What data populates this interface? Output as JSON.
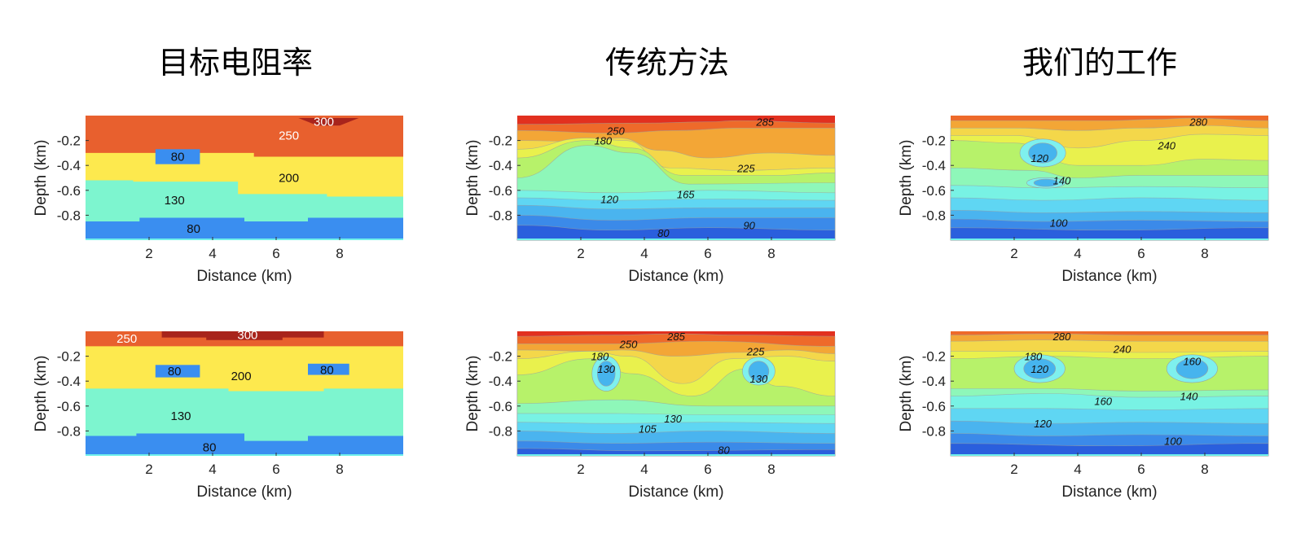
{
  "titles": [
    "目标电阻率",
    "传统方法",
    "我们的工作"
  ],
  "axes": {
    "xlabel": "Distance (km)",
    "ylabel": "Depth (km)",
    "xticks": [
      "2",
      "4",
      "6",
      "8"
    ],
    "yticks": [
      "-0.2",
      "-0.4",
      "-0.6",
      "-0.8"
    ]
  },
  "chart_data": [
    {
      "type": "heatmap",
      "column": 0,
      "row": 0,
      "xlim": [
        0,
        10
      ],
      "ylim": [
        -1.0,
        0.0
      ],
      "layers": [
        {
          "value": 300,
          "color": "#a8241c"
        },
        {
          "value": 250,
          "color": "#e8602e"
        },
        {
          "value": 200,
          "color": "#fde94e"
        },
        {
          "value": 130,
          "color": "#7df5cf"
        },
        {
          "value": 80,
          "color": "#3a8ef0"
        }
      ],
      "labels": [
        {
          "text": "300",
          "x": 7.5,
          "y": -0.05,
          "white": true
        },
        {
          "text": "250",
          "x": 6.4,
          "y": -0.16,
          "white": true
        },
        {
          "text": "80",
          "x": 2.9,
          "y": -0.33,
          "white": false
        },
        {
          "text": "200",
          "x": 6.4,
          "y": -0.5,
          "white": false
        },
        {
          "text": "130",
          "x": 2.8,
          "y": -0.68,
          "white": false
        },
        {
          "text": "80",
          "x": 3.4,
          "y": -0.91,
          "white": false
        }
      ]
    },
    {
      "type": "heatmap",
      "column": 0,
      "row": 1,
      "xlim": [
        0,
        10
      ],
      "ylim": [
        -1.0,
        0.0
      ],
      "layers": [
        {
          "value": 300,
          "color": "#a8241c"
        },
        {
          "value": 250,
          "color": "#e8602e"
        },
        {
          "value": 200,
          "color": "#fde94e"
        },
        {
          "value": 130,
          "color": "#7df5cf"
        },
        {
          "value": 80,
          "color": "#3a8ef0"
        }
      ],
      "labels": [
        {
          "text": "250",
          "x": 1.3,
          "y": -0.06,
          "white": true
        },
        {
          "text": "300",
          "x": 5.1,
          "y": -0.03,
          "white": true
        },
        {
          "text": "80",
          "x": 2.8,
          "y": -0.32,
          "white": false
        },
        {
          "text": "200",
          "x": 4.9,
          "y": -0.36,
          "white": false
        },
        {
          "text": "80",
          "x": 7.6,
          "y": -0.31,
          "white": false
        },
        {
          "text": "130",
          "x": 3.0,
          "y": -0.68,
          "white": false
        },
        {
          "text": "80",
          "x": 3.9,
          "y": -0.93,
          "white": false
        }
      ]
    },
    {
      "type": "heatmap",
      "column": 1,
      "row": 0,
      "xlim": [
        0,
        10
      ],
      "ylim": [
        -1.0,
        0.0
      ],
      "contours": [
        {
          "text": "285",
          "x": 7.8,
          "y": -0.05
        },
        {
          "text": "250",
          "x": 3.1,
          "y": -0.12
        },
        {
          "text": "180",
          "x": 2.7,
          "y": -0.2
        },
        {
          "text": "225",
          "x": 7.2,
          "y": -0.42
        },
        {
          "text": "165",
          "x": 5.3,
          "y": -0.63
        },
        {
          "text": "120",
          "x": 2.9,
          "y": -0.67
        },
        {
          "text": "90",
          "x": 7.3,
          "y": -0.88
        },
        {
          "text": "80",
          "x": 4.6,
          "y": -0.94
        }
      ]
    },
    {
      "type": "heatmap",
      "column": 1,
      "row": 1,
      "xlim": [
        0,
        10
      ],
      "ylim": [
        -1.0,
        0.0
      ],
      "contours": [
        {
          "text": "285",
          "x": 5.0,
          "y": -0.04
        },
        {
          "text": "250",
          "x": 3.5,
          "y": -0.1
        },
        {
          "text": "225",
          "x": 7.5,
          "y": -0.16
        },
        {
          "text": "180",
          "x": 2.6,
          "y": -0.2
        },
        {
          "text": "130",
          "x": 2.8,
          "y": -0.3
        },
        {
          "text": "130",
          "x": 7.6,
          "y": -0.38
        },
        {
          "text": "130",
          "x": 4.9,
          "y": -0.7
        },
        {
          "text": "105",
          "x": 4.1,
          "y": -0.78
        },
        {
          "text": "80",
          "x": 6.5,
          "y": -0.95
        }
      ]
    },
    {
      "type": "heatmap",
      "column": 2,
      "row": 0,
      "xlim": [
        0,
        10
      ],
      "ylim": [
        -1.0,
        0.0
      ],
      "contours": [
        {
          "text": "280",
          "x": 7.8,
          "y": -0.05
        },
        {
          "text": "240",
          "x": 6.8,
          "y": -0.24
        },
        {
          "text": "120",
          "x": 2.8,
          "y": -0.34
        },
        {
          "text": "140",
          "x": 3.5,
          "y": -0.52
        },
        {
          "text": "100",
          "x": 3.4,
          "y": -0.86
        }
      ]
    },
    {
      "type": "heatmap",
      "column": 2,
      "row": 1,
      "xlim": [
        0,
        10
      ],
      "ylim": [
        -1.0,
        0.0
      ],
      "contours": [
        {
          "text": "280",
          "x": 3.5,
          "y": -0.04
        },
        {
          "text": "240",
          "x": 5.4,
          "y": -0.14
        },
        {
          "text": "180",
          "x": 2.6,
          "y": -0.2
        },
        {
          "text": "160",
          "x": 7.6,
          "y": -0.24
        },
        {
          "text": "120",
          "x": 2.8,
          "y": -0.3
        },
        {
          "text": "160",
          "x": 4.8,
          "y": -0.56
        },
        {
          "text": "140",
          "x": 7.5,
          "y": -0.52
        },
        {
          "text": "120",
          "x": 2.9,
          "y": -0.74
        },
        {
          "text": "100",
          "x": 7.0,
          "y": -0.88
        }
      ]
    }
  ]
}
